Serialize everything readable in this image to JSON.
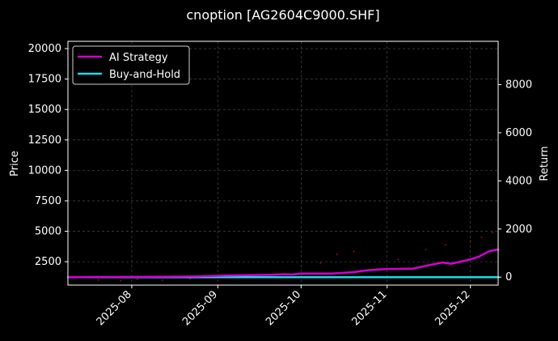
{
  "chart_data": {
    "type": "line",
    "title": "cnoption [AG2604C9000.SHF]",
    "xlabel": "",
    "ylabel_left": "Price",
    "ylabel_right": "Return",
    "x_range": [
      "2025-07-09",
      "2025-12-11"
    ],
    "ylim_left": [
      580,
      20600
    ],
    "ylim_right": [
      -330,
      9800
    ],
    "yticks_left": [
      2500,
      5000,
      7500,
      10000,
      12500,
      15000,
      17500,
      20000
    ],
    "ytick_labels_left": [
      "2500",
      "5000",
      "7500",
      "10000",
      "12500",
      "15000",
      "17500",
      "20000"
    ],
    "yticks_right": [
      0,
      2000,
      4000,
      6000,
      8000
    ],
    "ytick_labels_right": [
      "0",
      "2000",
      "4000",
      "6000",
      "8000"
    ],
    "xticks": [
      "2025-08-01",
      "2025-09-01",
      "2025-10-01",
      "2025-11-01",
      "2025-12-01"
    ],
    "xtick_labels": [
      "2025-08",
      "2025-09",
      "2025-10",
      "2025-11",
      "2025-12"
    ],
    "grid": true,
    "legend": "top-left",
    "series": [
      {
        "name": "AI Strategy",
        "axis": "right",
        "color": "#d400d4",
        "x": [
          "2025-07-09",
          "2025-07-20",
          "2025-08-01",
          "2025-08-15",
          "2025-08-25",
          "2025-09-05",
          "2025-09-20",
          "2025-09-25",
          "2025-09-28",
          "2025-10-01",
          "2025-10-12",
          "2025-10-20",
          "2025-10-25",
          "2025-10-28",
          "2025-11-01",
          "2025-11-10",
          "2025-11-13",
          "2025-11-17",
          "2025-11-21",
          "2025-11-24",
          "2025-11-27",
          "2025-12-01",
          "2025-12-04",
          "2025-12-08",
          "2025-12-11"
        ],
        "values": [
          0,
          5,
          10,
          20,
          35,
          70,
          100,
          120,
          110,
          150,
          150,
          210,
          290,
          310,
          340,
          350,
          420,
          520,
          610,
          560,
          630,
          740,
          850,
          1090,
          1150
        ]
      },
      {
        "name": "Buy-and-Hold",
        "axis": "right",
        "color": "#22d8e8",
        "x": [
          "2025-07-09",
          "2025-12-11"
        ],
        "values": [
          0,
          0
        ]
      }
    ],
    "price_points": {
      "axis": "left",
      "color": "#b01030",
      "x": [
        "2025-07-20",
        "2025-07-28",
        "2025-08-03",
        "2025-08-12",
        "2025-08-22",
        "2025-09-08",
        "2025-09-22",
        "2025-10-08",
        "2025-10-14",
        "2025-10-20",
        "2025-11-05",
        "2025-11-15",
        "2025-11-22",
        "2025-12-01",
        "2025-12-05",
        "2025-12-09"
      ],
      "values": [
        1000,
        950,
        1050,
        980,
        1100,
        1400,
        1500,
        2400,
        3100,
        3350,
        2700,
        3500,
        3900,
        4200,
        4500,
        4900
      ]
    }
  }
}
